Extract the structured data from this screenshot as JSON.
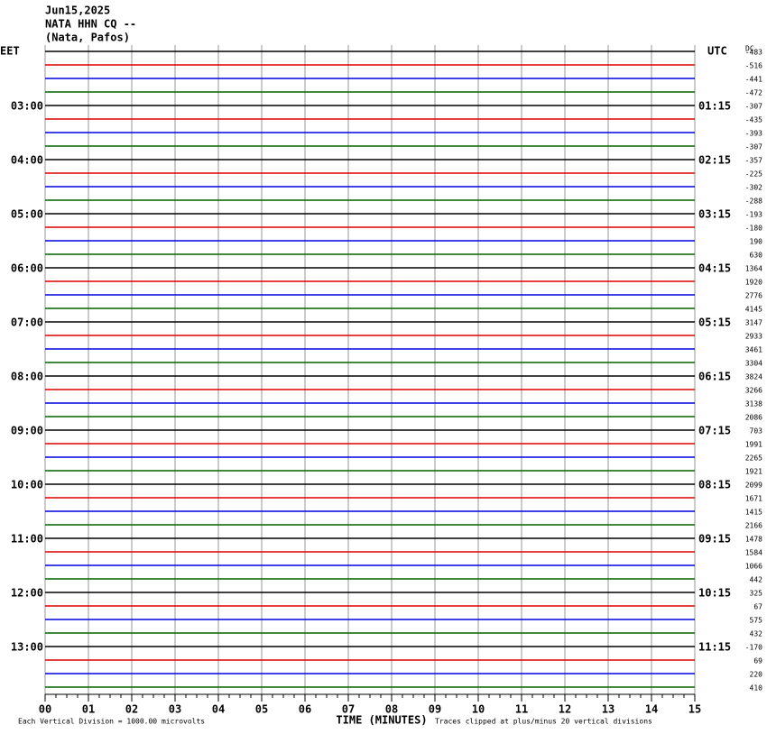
{
  "chart_data": {
    "type": "helicorder",
    "title_lines": [
      "Jun15,2025",
      "NATA HHN CQ --",
      "(Nata, Pafos)"
    ],
    "left_axis_label": "EET",
    "right_axis_label": "UTC",
    "dc_label": "DC",
    "left_labels": [
      null,
      null,
      null,
      null,
      "03:00",
      null,
      null,
      null,
      "04:00",
      null,
      null,
      null,
      "05:00",
      null,
      null,
      null,
      "06:00",
      null,
      null,
      null,
      "07:00",
      null,
      null,
      null,
      "08:00",
      null,
      null,
      null,
      "09:00",
      null,
      null,
      null,
      "10:00",
      null,
      null,
      null,
      "11:00",
      null,
      null,
      null,
      "12:00",
      null,
      null,
      null,
      "13:00",
      null,
      null,
      null
    ],
    "right_labels": [
      null,
      null,
      null,
      null,
      "01:15",
      null,
      null,
      null,
      "02:15",
      null,
      null,
      null,
      "03:15",
      null,
      null,
      null,
      "04:15",
      null,
      null,
      null,
      "05:15",
      null,
      null,
      null,
      "06:15",
      null,
      null,
      null,
      "07:15",
      null,
      null,
      null,
      "08:15",
      null,
      null,
      null,
      "09:15",
      null,
      null,
      null,
      "10:15",
      null,
      null,
      null,
      "11:15",
      null,
      null,
      null
    ],
    "dc_offsets": [
      -483,
      -516,
      -441,
      -472,
      -307,
      -435,
      -393,
      -307,
      -357,
      -225,
      -302,
      -288,
      -193,
      -180,
      190,
      630,
      1364,
      1920,
      2776,
      4145,
      3147,
      2933,
      3461,
      3304,
      3824,
      3266,
      3138,
      2086,
      703,
      1991,
      2265,
      1921,
      2099,
      1671,
      1415,
      2166,
      1478,
      1584,
      1066,
      442,
      325,
      67,
      575,
      432,
      -170,
      69,
      220,
      410
    ],
    "trace_colors": [
      "#000000",
      "#e00000",
      "#0000e0",
      "#006400"
    ],
    "xlim": [
      0,
      15
    ],
    "xticks": [
      {
        "value": 0,
        "label": "00"
      },
      {
        "value": 1,
        "label": "01"
      },
      {
        "value": 2,
        "label": "02"
      },
      {
        "value": 3,
        "label": "03"
      },
      {
        "value": 4,
        "label": "04"
      },
      {
        "value": 5,
        "label": "05"
      },
      {
        "value": 6,
        "label": "06"
      },
      {
        "value": 7,
        "label": "07"
      },
      {
        "value": 8,
        "label": "08"
      },
      {
        "value": 9,
        "label": "09"
      },
      {
        "value": 10,
        "label": "10"
      },
      {
        "value": 11,
        "label": "11"
      },
      {
        "value": 12,
        "label": "12"
      },
      {
        "value": 13,
        "label": "13"
      },
      {
        "value": 14,
        "label": "14"
      },
      {
        "value": 15,
        "label": "15"
      }
    ],
    "xlabel": "TIME (MINUTES)",
    "scale_note": "Each Vertical Division = 1000.00 microvolts",
    "clip_note": "Traces clipped at plus/minus 20 vertical divisions"
  }
}
